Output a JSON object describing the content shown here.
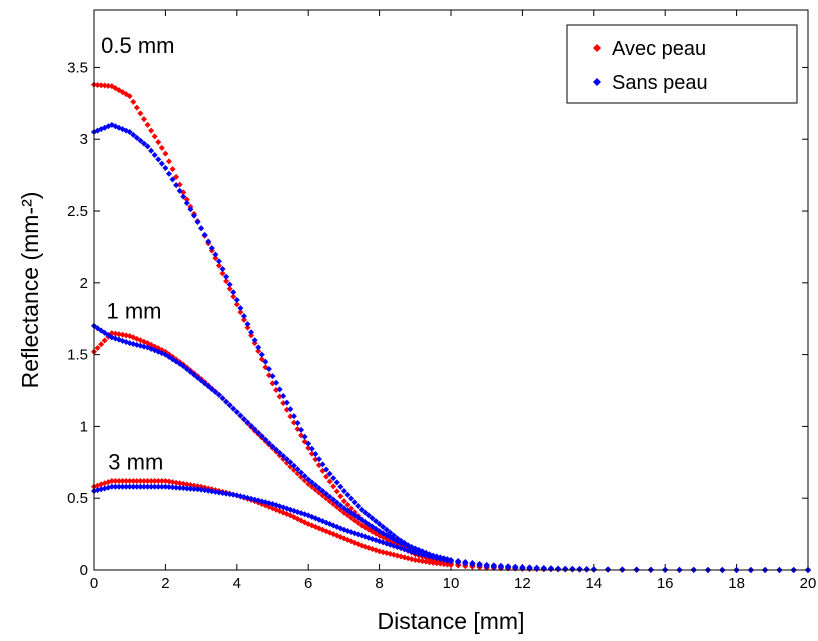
{
  "chart_data": {
    "type": "scatter",
    "xlabel": "Distance  [mm]",
    "ylabel": "Reflectance (mm-²)",
    "xlim": [
      0,
      20
    ],
    "ylim": [
      0,
      3.9
    ],
    "x_ticks": [
      0,
      2,
      4,
      6,
      8,
      10,
      12,
      14,
      16,
      18,
      20
    ],
    "x_tick_labels": [
      "0",
      "2",
      "4",
      "6",
      "8",
      "10",
      "12",
      "14",
      "16",
      "18",
      "20"
    ],
    "y_ticks": [
      0,
      0.5,
      1,
      1.5,
      2,
      2.5,
      3,
      3.5
    ],
    "y_tick_labels": [
      "0",
      "0.5",
      "1",
      "1.5",
      "2",
      "2.5",
      "3",
      "3.5"
    ],
    "grid": false,
    "legend_position": "top-right",
    "annotations": [
      {
        "text": "0.5 mm",
        "x": 0.2,
        "y": 3.6
      },
      {
        "text": "1 mm",
        "x": 0.35,
        "y": 1.75
      },
      {
        "text": "3 mm",
        "x": 0.4,
        "y": 0.7
      }
    ],
    "series": [
      {
        "name": "Avec peau",
        "color": "#ff0000",
        "groups": [
          {
            "label": "0.5 mm",
            "x": [
              0,
              0.5,
              1,
              1.5,
              2,
              2.5,
              3,
              3.5,
              4,
              4.5,
              5,
              5.5,
              6,
              6.5,
              7,
              7.5,
              8,
              8.5,
              9,
              9.5,
              10,
              11,
              12,
              13,
              14,
              16,
              18,
              20
            ],
            "y": [
              3.38,
              3.37,
              3.3,
              3.1,
              2.9,
              2.63,
              2.38,
              2.12,
              1.85,
              1.58,
              1.3,
              1.07,
              0.85,
              0.65,
              0.48,
              0.35,
              0.25,
              0.17,
              0.11,
              0.07,
              0.045,
              0.02,
              0.01,
              0.005,
              0.003,
              0.001,
              0.0,
              0.0
            ]
          },
          {
            "label": "1 mm",
            "x": [
              0,
              0.5,
              1,
              1.5,
              2,
              2.5,
              3,
              3.5,
              4,
              4.5,
              5,
              5.5,
              6,
              6.5,
              7,
              7.5,
              8,
              8.5,
              9,
              9.5,
              10,
              11,
              12,
              13,
              14,
              16,
              18,
              20
            ],
            "y": [
              1.52,
              1.65,
              1.63,
              1.58,
              1.52,
              1.43,
              1.33,
              1.22,
              1.1,
              0.97,
              0.85,
              0.72,
              0.6,
              0.5,
              0.4,
              0.31,
              0.24,
              0.18,
              0.13,
              0.09,
              0.06,
              0.03,
              0.015,
              0.008,
              0.004,
              0.001,
              0.0,
              0.0
            ]
          },
          {
            "label": "3 mm",
            "x": [
              0,
              0.5,
              1,
              1.5,
              2,
              2.5,
              3,
              3.5,
              4,
              4.5,
              5,
              5.5,
              6,
              6.5,
              7,
              7.5,
              8,
              8.5,
              9,
              9.5,
              10,
              11,
              12,
              13,
              14,
              16,
              18,
              20
            ],
            "y": [
              0.58,
              0.62,
              0.62,
              0.62,
              0.62,
              0.6,
              0.58,
              0.55,
              0.52,
              0.48,
              0.43,
              0.38,
              0.32,
              0.27,
              0.22,
              0.17,
              0.13,
              0.1,
              0.07,
              0.05,
              0.035,
              0.015,
              0.008,
              0.004,
              0.002,
              0.0,
              0.0,
              0.0
            ]
          }
        ]
      },
      {
        "name": "Sans peau",
        "color": "#0000ff",
        "groups": [
          {
            "label": "0.5 mm",
            "x": [
              0,
              0.5,
              1,
              1.5,
              2,
              2.5,
              3,
              3.5,
              4,
              4.5,
              5,
              5.5,
              6,
              6.5,
              7,
              7.5,
              8,
              8.5,
              9,
              9.5,
              10,
              11,
              12,
              13,
              14,
              16,
              18,
              20
            ],
            "y": [
              3.05,
              3.1,
              3.05,
              2.95,
              2.8,
              2.6,
              2.38,
              2.15,
              1.88,
              1.6,
              1.35,
              1.12,
              0.88,
              0.7,
              0.55,
              0.42,
              0.32,
              0.22,
              0.14,
              0.09,
              0.06,
              0.025,
              0.012,
              0.006,
              0.003,
              0.001,
              0.0,
              0.0
            ]
          },
          {
            "label": "1 mm",
            "x": [
              0,
              0.5,
              1,
              1.5,
              2,
              2.5,
              3,
              3.5,
              4,
              4.5,
              5,
              5.5,
              6,
              6.5,
              7,
              7.5,
              8,
              8.5,
              9,
              9.5,
              10,
              11,
              12,
              13,
              14,
              16,
              18,
              20
            ],
            "y": [
              1.7,
              1.62,
              1.58,
              1.55,
              1.5,
              1.42,
              1.32,
              1.22,
              1.1,
              0.98,
              0.86,
              0.75,
              0.63,
              0.53,
              0.43,
              0.35,
              0.27,
              0.2,
              0.15,
              0.1,
              0.07,
              0.035,
              0.018,
              0.009,
              0.005,
              0.001,
              0.0,
              0.0
            ]
          },
          {
            "label": "3 mm",
            "x": [
              0,
              0.5,
              1,
              1.5,
              2,
              2.5,
              3,
              3.5,
              4,
              4.5,
              5,
              5.5,
              6,
              6.5,
              7,
              7.5,
              8,
              8.5,
              9,
              9.5,
              10,
              11,
              12,
              13,
              14,
              16,
              18,
              20
            ],
            "y": [
              0.55,
              0.58,
              0.58,
              0.58,
              0.58,
              0.57,
              0.56,
              0.54,
              0.52,
              0.49,
              0.46,
              0.42,
              0.38,
              0.33,
              0.28,
              0.24,
              0.2,
              0.16,
              0.12,
              0.09,
              0.065,
              0.035,
              0.02,
              0.01,
              0.005,
              0.001,
              0.0,
              0.0
            ]
          }
        ]
      }
    ]
  }
}
